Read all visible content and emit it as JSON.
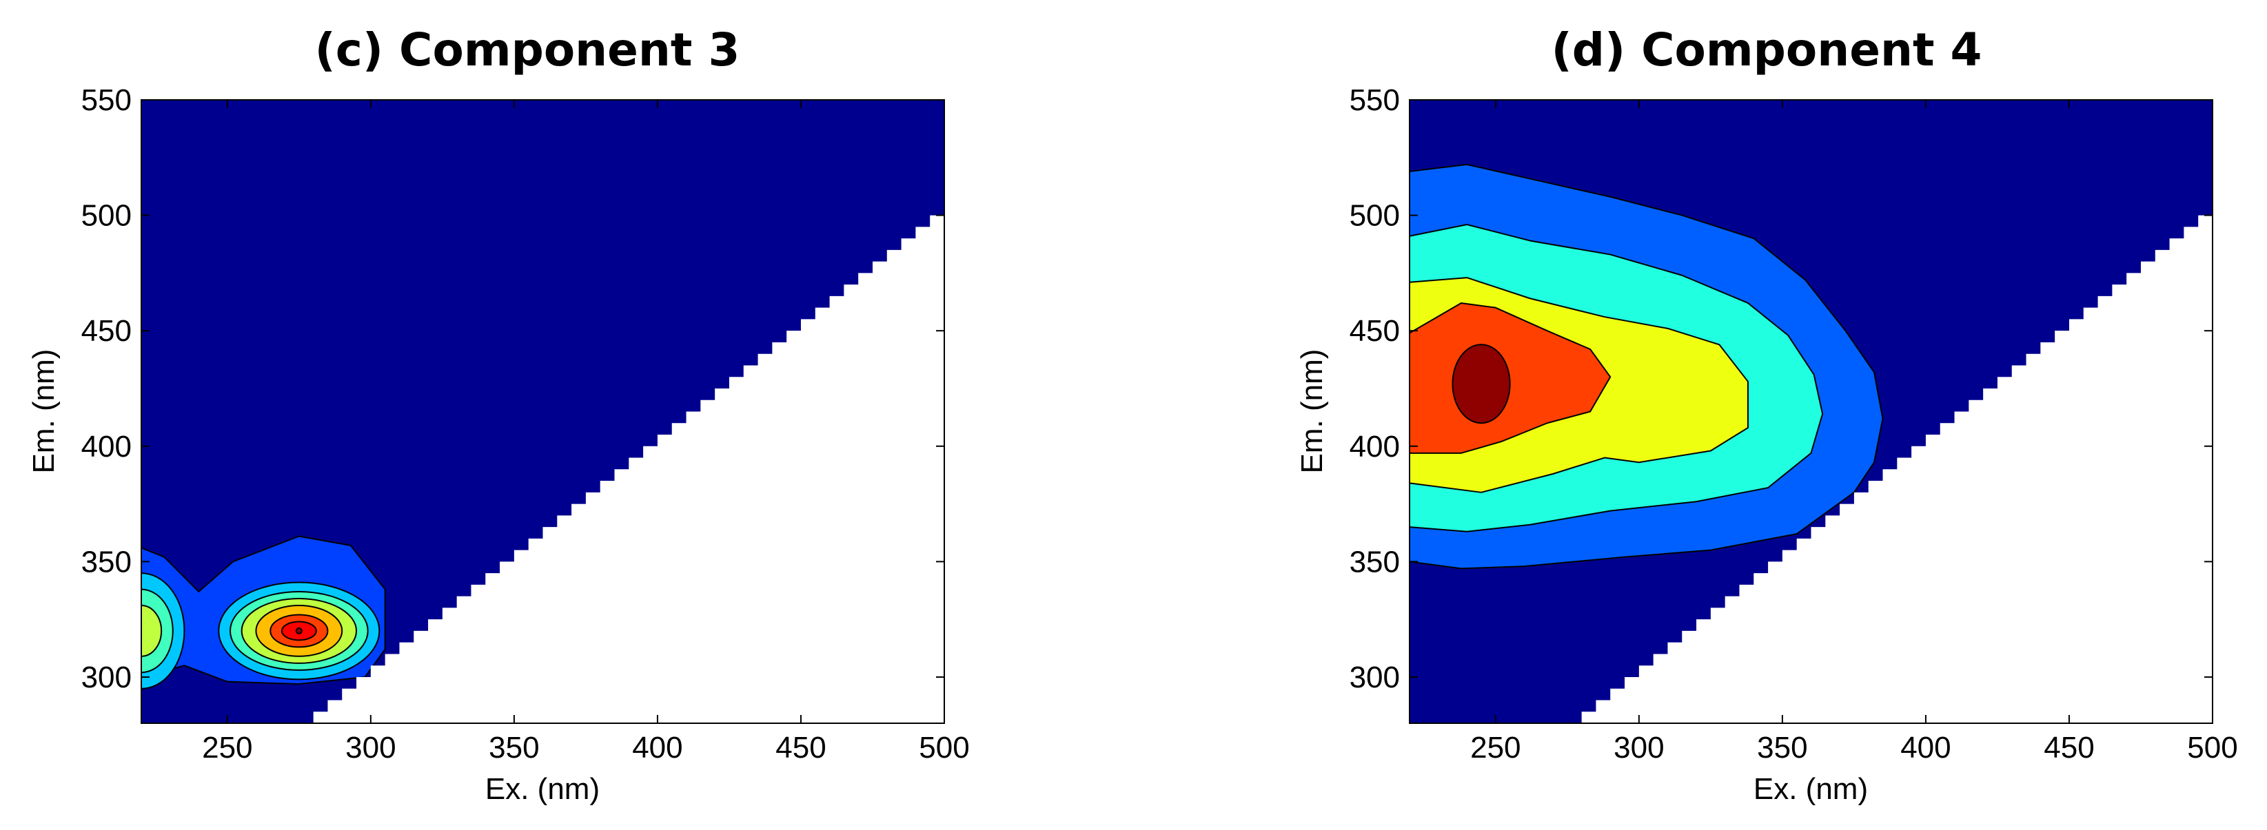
{
  "chart_data": [
    {
      "type": "heatmap",
      "subtype": "filled-contour",
      "title": "(c) Component 3",
      "xlabel": "Ex. (nm)",
      "ylabel": "Em. (nm)",
      "xlim": [
        220,
        500
      ],
      "ylim": [
        280,
        550
      ],
      "xticks": [
        250,
        300,
        350,
        400,
        450,
        500
      ],
      "yticks": [
        300,
        350,
        400,
        450,
        500,
        550
      ],
      "colormap": [
        "#00008f",
        "#0040ff",
        "#00c8ff",
        "#40ffbf",
        "#bfff40",
        "#ffbf00",
        "#ff4000",
        "#ff0000",
        "#8f0000"
      ],
      "masked_region": "Em < Ex (below the diagonal), rendered white",
      "peaks": [
        {
          "ex": 275,
          "em": 320,
          "level": 7
        },
        {
          "ex": 220,
          "em": 320,
          "level": 4
        }
      ],
      "grid": false
    },
    {
      "type": "heatmap",
      "subtype": "filled-contour",
      "title": "(d) Component 4",
      "xlabel": "Ex. (nm)",
      "ylabel": "Em. (nm)",
      "xlim": [
        220,
        500
      ],
      "ylim": [
        280,
        550
      ],
      "xticks": [
        250,
        300,
        350,
        400,
        450,
        500
      ],
      "yticks": [
        300,
        350,
        400,
        450,
        500,
        550
      ],
      "colormap": [
        "#00008f",
        "#0060ff",
        "#20ffdf",
        "#efff10",
        "#ff4000",
        "#8f0000"
      ],
      "masked_region": "Em < Ex (below the diagonal), rendered white",
      "peaks": [
        {
          "ex": 245,
          "em": 427,
          "level": 5
        }
      ],
      "grid": false
    }
  ]
}
